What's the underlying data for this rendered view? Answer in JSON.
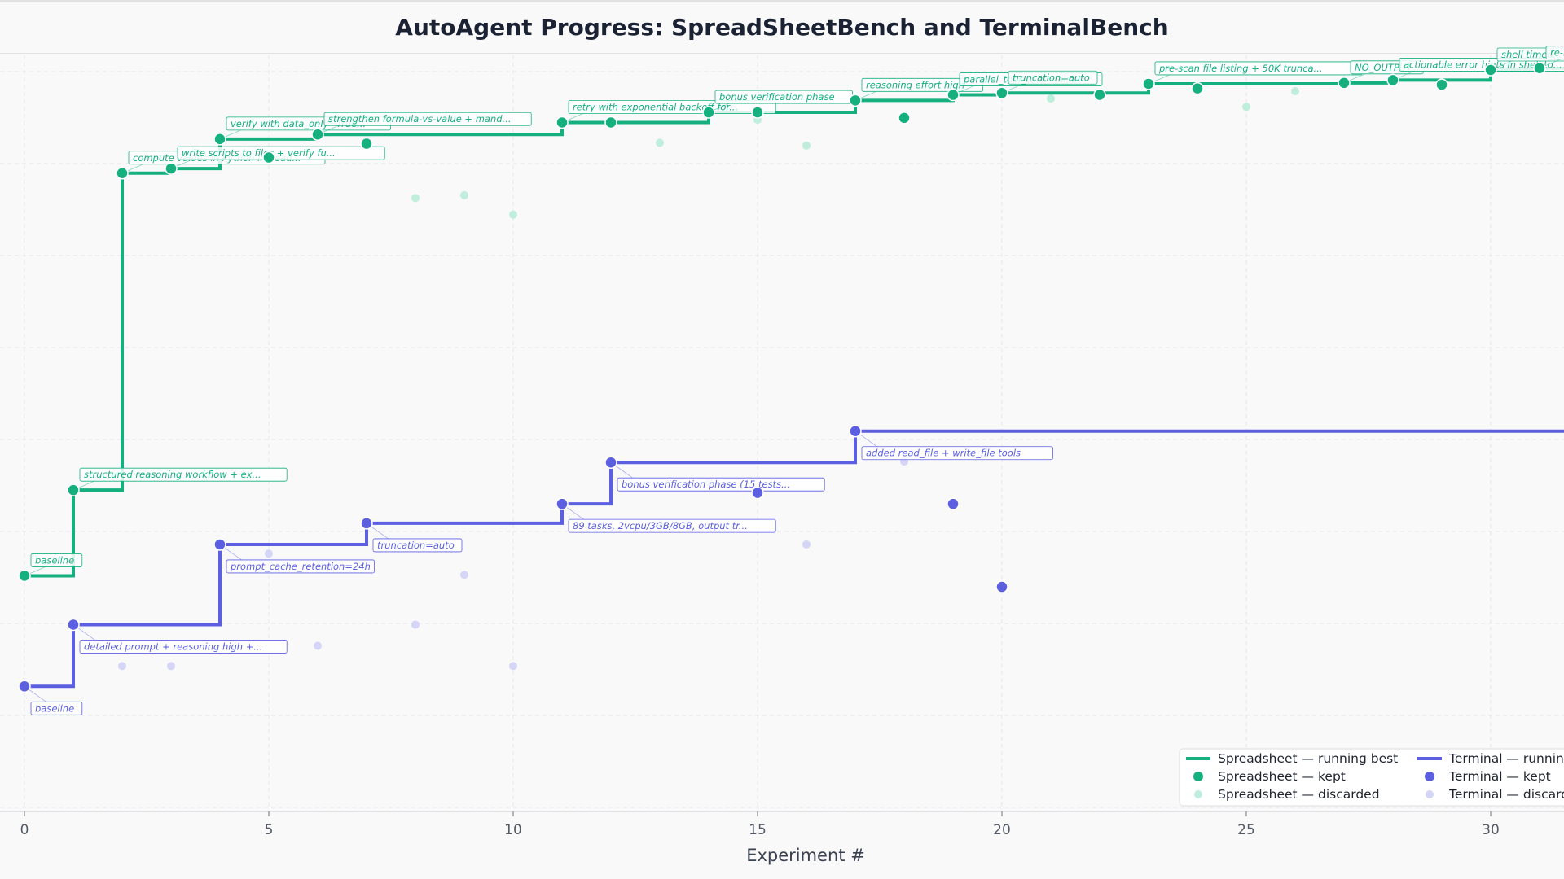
{
  "chart_data": {
    "type": "line",
    "title": "AutoAgent Progress: SpreadSheetBench and TerminalBench",
    "xlabel": "Experiment #",
    "ylabel": "",
    "xlim": [
      0,
      32
    ],
    "x_ticks": [
      0,
      5,
      10,
      15,
      20,
      25,
      30
    ],
    "grid": true,
    "legend_position": "bottom-right",
    "colors": {
      "spreadsheet": "#15b07e",
      "spreadsheet_light": "#bfeedd",
      "terminal": "#5b5fe0",
      "terminal_light": "#d4d5f7"
    },
    "legend": [
      "Spreadsheet — running best",
      "Spreadsheet — kept",
      "Spreadsheet — discarded",
      "Terminal — running",
      "Terminal — kept",
      "Terminal — discarded"
    ],
    "series": [
      {
        "name": "Spreadsheet",
        "kept": [
          {
            "x": 0,
            "y": 43.6
          },
          {
            "x": 1,
            "y": 52.9
          },
          {
            "x": 2,
            "y": 87.3
          },
          {
            "x": 3,
            "y": 87.8
          },
          {
            "x": 4,
            "y": 91.0
          },
          {
            "x": 5,
            "y": 89.0
          },
          {
            "x": 6,
            "y": 91.5
          },
          {
            "x": 7,
            "y": 90.5
          },
          {
            "x": 11,
            "y": 92.8
          },
          {
            "x": 12,
            "y": 92.8
          },
          {
            "x": 14,
            "y": 93.9
          },
          {
            "x": 15,
            "y": 93.9
          },
          {
            "x": 17,
            "y": 95.2
          },
          {
            "x": 18,
            "y": 93.3
          },
          {
            "x": 19,
            "y": 95.8
          },
          {
            "x": 20,
            "y": 96.0
          },
          {
            "x": 22,
            "y": 95.8
          },
          {
            "x": 23,
            "y": 97.0
          },
          {
            "x": 24,
            "y": 96.5
          },
          {
            "x": 27,
            "y": 97.1
          },
          {
            "x": 28,
            "y": 97.4
          },
          {
            "x": 29,
            "y": 96.9
          },
          {
            "x": 30,
            "y": 98.5
          },
          {
            "x": 31,
            "y": 98.7
          }
        ],
        "discarded": [
          {
            "x": 8,
            "y": 84.6
          },
          {
            "x": 9,
            "y": 84.9
          },
          {
            "x": 10,
            "y": 82.8
          },
          {
            "x": 13,
            "y": 90.6
          },
          {
            "x": 15,
            "y": 93.1
          },
          {
            "x": 16,
            "y": 90.3
          },
          {
            "x": 21,
            "y": 95.4
          },
          {
            "x": 25,
            "y": 94.5
          },
          {
            "x": 26,
            "y": 96.2
          }
        ],
        "running_best": [
          {
            "x": 0,
            "y": 43.6
          },
          {
            "x": 1,
            "y": 52.9
          },
          {
            "x": 2,
            "y": 87.3
          },
          {
            "x": 3,
            "y": 87.8
          },
          {
            "x": 4,
            "y": 91.0
          },
          {
            "x": 6,
            "y": 91.5
          },
          {
            "x": 11,
            "y": 92.8
          },
          {
            "x": 14,
            "y": 93.9
          },
          {
            "x": 17,
            "y": 95.2
          },
          {
            "x": 19,
            "y": 95.8
          },
          {
            "x": 20,
            "y": 96.0
          },
          {
            "x": 23,
            "y": 97.0
          },
          {
            "x": 27,
            "y": 97.1
          },
          {
            "x": 28,
            "y": 97.4
          },
          {
            "x": 30,
            "y": 98.5
          },
          {
            "x": 31,
            "y": 98.7
          },
          {
            "x": 32,
            "y": 98.7
          }
        ]
      },
      {
        "name": "Terminal",
        "kept": [
          {
            "x": 0,
            "y": 31.6
          },
          {
            "x": 1,
            "y": 38.3
          },
          {
            "x": 4,
            "y": 47.0
          },
          {
            "x": 7,
            "y": 49.3
          },
          {
            "x": 11,
            "y": 51.4
          },
          {
            "x": 12,
            "y": 55.9
          },
          {
            "x": 15,
            "y": 52.6
          },
          {
            "x": 17,
            "y": 59.3
          },
          {
            "x": 19,
            "y": 51.4
          },
          {
            "x": 20,
            "y": 42.4
          }
        ],
        "discarded": [
          {
            "x": 2,
            "y": 33.8
          },
          {
            "x": 3,
            "y": 33.8
          },
          {
            "x": 5,
            "y": 46.0
          },
          {
            "x": 6,
            "y": 36.0
          },
          {
            "x": 8,
            "y": 38.3
          },
          {
            "x": 9,
            "y": 43.7
          },
          {
            "x": 10,
            "y": 33.8
          },
          {
            "x": 13,
            "y": 49.2
          },
          {
            "x": 14,
            "y": 53.8
          },
          {
            "x": 16,
            "y": 47.0
          },
          {
            "x": 18,
            "y": 56.0
          }
        ],
        "running_best": [
          {
            "x": 0,
            "y": 31.6
          },
          {
            "x": 1,
            "y": 38.3
          },
          {
            "x": 4,
            "y": 47.0
          },
          {
            "x": 7,
            "y": 49.3
          },
          {
            "x": 11,
            "y": 51.4
          },
          {
            "x": 12,
            "y": 55.9
          },
          {
            "x": 17,
            "y": 59.3
          },
          {
            "x": 32,
            "y": 59.3
          }
        ]
      }
    ],
    "annotations": [
      {
        "series": "Spreadsheet",
        "x": 0,
        "text": "baseline"
      },
      {
        "series": "Spreadsheet",
        "x": 1,
        "text": "structured reasoning workflow + ex..."
      },
      {
        "series": "Spreadsheet",
        "x": 2,
        "text": "compute values in Python instead..."
      },
      {
        "series": "Spreadsheet",
        "x": 3,
        "text": "write scripts to files + verify fu..."
      },
      {
        "series": "Spreadsheet",
        "x": 4,
        "text": "verify with data_only=True..."
      },
      {
        "series": "Spreadsheet",
        "x": 6,
        "text": "strengthen formula-vs-value + mand..."
      },
      {
        "series": "Spreadsheet",
        "x": 11,
        "text": "retry with exponential backoff for..."
      },
      {
        "series": "Spreadsheet",
        "x": 14,
        "text": "bonus verification phase"
      },
      {
        "series": "Spreadsheet",
        "x": 17,
        "text": "reasoning effort high"
      },
      {
        "series": "Spreadsheet",
        "x": 19,
        "text": "parallel_tool_calls=false"
      },
      {
        "series": "Spreadsheet",
        "x": 20,
        "text": "truncation=auto"
      },
      {
        "series": "Spreadsheet",
        "x": 23,
        "text": "pre-scan file listing + 50K trunca..."
      },
      {
        "series": "Spreadsheet",
        "x": 27,
        "text": "NO_OUTPUT..."
      },
      {
        "series": "Spreadsheet",
        "x": 28,
        "text": "actionable error hints in shell to..."
      },
      {
        "series": "Spreadsheet",
        "x": 30,
        "text": "shell timed..."
      },
      {
        "series": "Spreadsheet",
        "x": 31,
        "text": "re-r..."
      },
      {
        "series": "Terminal",
        "x": 0,
        "text": "baseline"
      },
      {
        "series": "Terminal",
        "x": 1,
        "text": "detailed prompt + reasoning high +..."
      },
      {
        "series": "Terminal",
        "x": 4,
        "text": "prompt_cache_retention=24h"
      },
      {
        "series": "Terminal",
        "x": 7,
        "text": "truncation=auto"
      },
      {
        "series": "Terminal",
        "x": 11,
        "text": "89 tasks, 2vcpu/3GB/8GB, output tr..."
      },
      {
        "series": "Terminal",
        "x": 12,
        "text": "bonus verification phase (15 tests..."
      },
      {
        "series": "Terminal",
        "x": 17,
        "text": "added read_file + write_file tools"
      }
    ]
  }
}
